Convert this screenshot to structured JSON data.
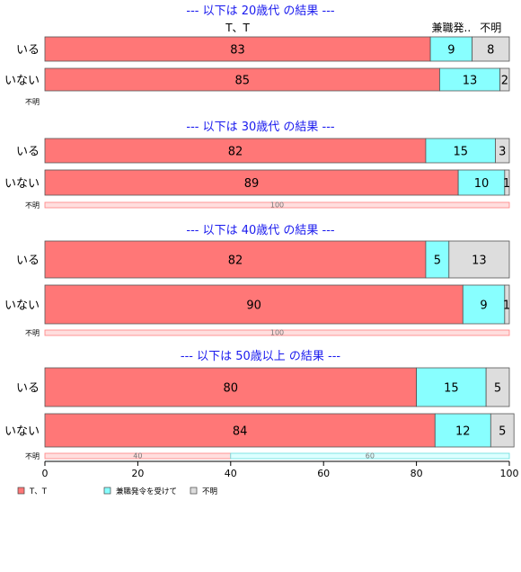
{
  "chart_data": {
    "type": "bar",
    "orientation": "horizontal",
    "stacked": "percent",
    "xlim": [
      0,
      100
    ],
    "x_ticks": [
      0,
      20,
      40,
      60,
      80,
      100
    ],
    "series_names": [
      "T、T",
      "兼職発令を受けて",
      "不明"
    ],
    "series_colors": [
      "#ff7777",
      "#88ffff",
      "#dddddd"
    ],
    "top_header_labels": [
      "T、T",
      "兼職発..",
      "不明"
    ],
    "panels": [
      {
        "title": "--- 以下は 20歳代 の結果 ---",
        "rows": [
          {
            "label": "いる",
            "values": [
              83,
              9,
              8
            ]
          },
          {
            "label": "いない",
            "values": [
              85,
              13,
              2
            ]
          },
          {
            "label": "不明",
            "values": [],
            "small": true
          }
        ]
      },
      {
        "title": "--- 以下は 30歳代 の結果 ---",
        "rows": [
          {
            "label": "いる",
            "values": [
              82,
              15,
              3
            ]
          },
          {
            "label": "いない",
            "values": [
              89,
              10,
              1
            ]
          },
          {
            "label": "不明",
            "values": [
              100,
              0,
              0
            ],
            "small": true
          }
        ]
      },
      {
        "title": "--- 以下は 40歳代 の結果 ---",
        "rows": [
          {
            "label": "いる",
            "values": [
              82,
              5,
              13
            ]
          },
          {
            "label": "いない",
            "values": [
              90,
              9,
              1
            ]
          },
          {
            "label": "不明",
            "values": [
              100,
              0,
              0
            ],
            "small": true
          }
        ]
      },
      {
        "title": "--- 以下は 50歳以上 の結果 ---",
        "rows": [
          {
            "label": "いる",
            "values": [
              80,
              15,
              5
            ]
          },
          {
            "label": "いない",
            "values": [
              84,
              12,
              5
            ]
          },
          {
            "label": "不明",
            "values": [
              40,
              60,
              0
            ],
            "small": true
          }
        ]
      }
    ],
    "legend": {
      "position": "bottom-left",
      "items": [
        "T、T",
        "兼職発令を受けて",
        "不明"
      ]
    }
  }
}
